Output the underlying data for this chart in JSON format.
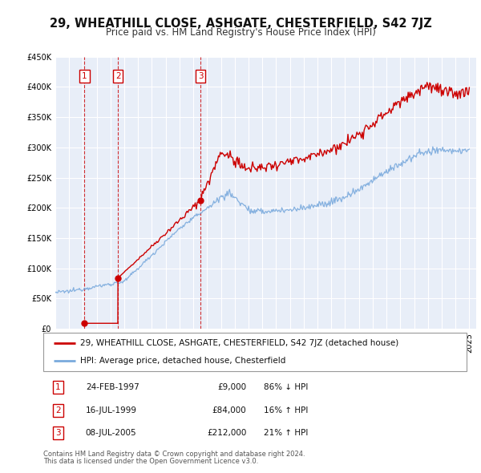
{
  "title": "29, WHEATHILL CLOSE, ASHGATE, CHESTERFIELD, S42 7JZ",
  "subtitle": "Price paid vs. HM Land Registry's House Price Index (HPI)",
  "ylim": [
    0,
    450000
  ],
  "xlim": [
    1995.0,
    2025.5
  ],
  "yticks": [
    0,
    50000,
    100000,
    150000,
    200000,
    250000,
    300000,
    350000,
    400000,
    450000
  ],
  "ytick_labels": [
    "£0",
    "£50K",
    "£100K",
    "£150K",
    "£200K",
    "£250K",
    "£300K",
    "£350K",
    "£400K",
    "£450K"
  ],
  "background_color": "#ffffff",
  "plot_bg_color": "#e8eef8",
  "grid_color": "#ffffff",
  "price_paid_color": "#cc0000",
  "hpi_color": "#7aaadd",
  "sale_marker_color": "#cc0000",
  "sale_label_color": "#cc0000",
  "sale_label_bg": "#ffffff",
  "sale_label_border": "#cc0000",
  "legend_box_color": "#ffffff",
  "legend_border_color": "#999999",
  "title_fontsize": 10.5,
  "subtitle_fontsize": 8.5,
  "tick_fontsize": 7,
  "legend_fontsize": 7.5,
  "table_fontsize": 7.5,
  "footnote_fontsize": 6,
  "sales": [
    {
      "num": 1,
      "date": "24-FEB-1997",
      "price": 9000,
      "pct": "86%",
      "dir": "↓",
      "year": 1997.12
    },
    {
      "num": 2,
      "date": "16-JUL-1999",
      "price": 84000,
      "pct": "16%",
      "dir": "↑",
      "year": 1999.54
    },
    {
      "num": 3,
      "date": "08-JUL-2005",
      "price": 212000,
      "pct": "21%",
      "dir": "↑",
      "year": 2005.52
    }
  ],
  "legend_line1": "29, WHEATHILL CLOSE, ASHGATE, CHESTERFIELD, S42 7JZ (detached house)",
  "legend_line2": "HPI: Average price, detached house, Chesterfield",
  "footnote1": "Contains HM Land Registry data © Crown copyright and database right 2024.",
  "footnote2": "This data is licensed under the Open Government Licence v3.0."
}
